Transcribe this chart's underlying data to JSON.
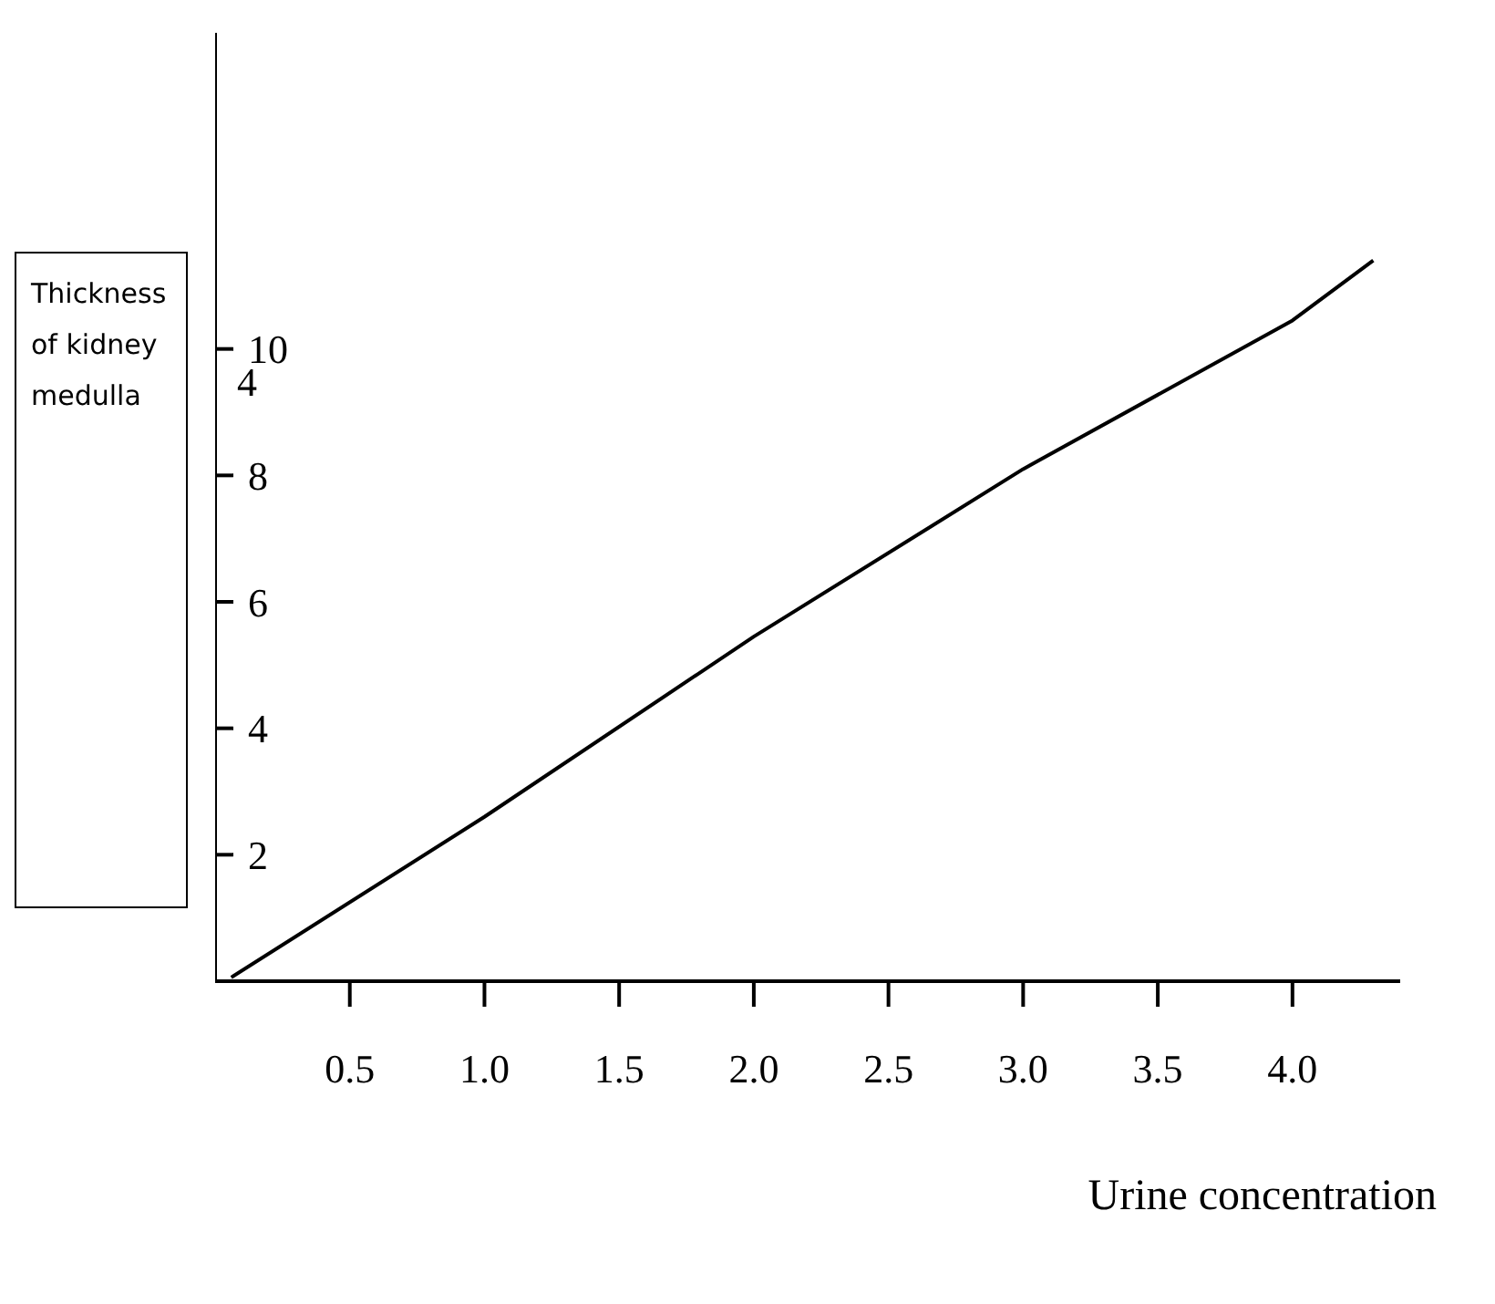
{
  "chart_data": {
    "type": "line",
    "xlabel": "Urine concentration",
    "ylabel": "Thickness of kidney medulla",
    "x": [
      0.06,
      1.0,
      2.0,
      3.0,
      4.0,
      4.3
    ],
    "series": [
      {
        "color": "#000000",
        "values": [
          0.06,
          2.6,
          5.45,
          8.1,
          10.45,
          11.4
        ]
      }
    ],
    "xlim": [
      0,
      4.4
    ],
    "xticks": [
      0.5,
      {
        "value": 1,
        "label": "1.0"
      },
      1.5,
      {
        "value": 2,
        "label": "2.0"
      },
      2.5,
      {
        "value": 3,
        "label": "3.0"
      },
      3.5,
      {
        "value": 4,
        "label": "4.0"
      }
    ],
    "ylim": [
      0,
      15
    ],
    "yticks": [
      2,
      4,
      6,
      8,
      10
    ],
    "annotations": [
      "4"
    ],
    "grid": false,
    "legend": false,
    "marker": "none",
    "line_style": "solid"
  }
}
